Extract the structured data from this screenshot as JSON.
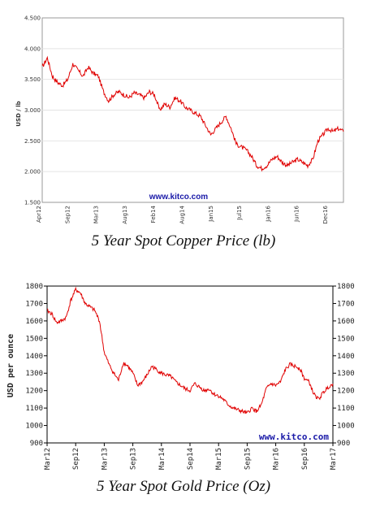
{
  "chart_data": [
    {
      "type": "line",
      "ylabel": "USD / lb",
      "ylim": [
        1.5,
        4.5
      ],
      "yticks": [
        "4.500",
        "4.000",
        "3.500",
        "3.000",
        "2.500",
        "2.000",
        "1.500"
      ],
      "xticks": [
        "Apr12",
        "Sep12",
        "Mar13",
        "Aug13",
        "Feb14",
        "Aug14",
        "Jan15",
        "Jul15",
        "Jan16",
        "Jun16",
        "Dec16"
      ],
      "watermark": "www.kitco.com",
      "caption": "5 Year Spot Copper Price (lb)",
      "line_color": "#e00000",
      "series": [
        {
          "x": [
            0,
            1,
            2,
            3,
            4,
            5,
            6,
            7,
            8,
            9,
            10,
            11,
            12,
            13,
            14,
            15,
            16,
            17,
            18,
            19,
            20,
            21,
            22,
            23,
            24,
            25,
            26,
            27,
            28,
            29,
            30,
            31,
            32,
            33,
            34,
            35,
            36,
            37,
            38,
            39,
            40,
            41,
            42,
            43,
            44,
            45,
            46,
            47,
            48,
            49,
            50,
            51,
            52,
            53,
            54,
            55,
            56,
            57,
            58,
            59
          ],
          "values": [
            3.7,
            3.85,
            3.55,
            3.45,
            3.4,
            3.5,
            3.75,
            3.65,
            3.55,
            3.7,
            3.6,
            3.55,
            3.3,
            3.15,
            3.25,
            3.3,
            3.25,
            3.2,
            3.28,
            3.25,
            3.2,
            3.3,
            3.25,
            3.0,
            3.1,
            3.05,
            3.2,
            3.15,
            3.05,
            3.0,
            2.95,
            2.9,
            2.75,
            2.6,
            2.7,
            2.8,
            2.9,
            2.7,
            2.45,
            2.4,
            2.35,
            2.25,
            2.1,
            2.05,
            2.1,
            2.2,
            2.25,
            2.15,
            2.1,
            2.15,
            2.2,
            2.15,
            2.1,
            2.2,
            2.5,
            2.6,
            2.7,
            2.65,
            2.7,
            2.65
          ]
        }
      ]
    },
    {
      "type": "line",
      "ylabel": "USD per ounce",
      "ylim": [
        900,
        1800
      ],
      "yticks": [
        "1800",
        "1700",
        "1600",
        "1500",
        "1400",
        "1300",
        "1200",
        "1100",
        "1000",
        "900"
      ],
      "xticks": [
        "Mar12",
        "Sep12",
        "Mar13",
        "Sep13",
        "Mar14",
        "Sep14",
        "Mar15",
        "Sep15",
        "Mar16",
        "Sep16",
        "Mar17"
      ],
      "watermark": "www.kitco.com",
      "caption": "5 Year Spot Gold Price (Oz)",
      "line_color": "#e00000",
      "series": [
        {
          "x": [
            0,
            1,
            2,
            3,
            4,
            5,
            6,
            7,
            8,
            9,
            10,
            11,
            12,
            13,
            14,
            15,
            16,
            17,
            18,
            19,
            20,
            21,
            22,
            23,
            24,
            25,
            26,
            27,
            28,
            29,
            30,
            31,
            32,
            33,
            34,
            35,
            36,
            37,
            38,
            39,
            40,
            41,
            42,
            43,
            44,
            45,
            46,
            47,
            48,
            49,
            50,
            51,
            52,
            53,
            54,
            55,
            56,
            57,
            58,
            59,
            60
          ],
          "values": [
            1660,
            1640,
            1590,
            1600,
            1620,
            1720,
            1780,
            1760,
            1700,
            1680,
            1660,
            1600,
            1420,
            1350,
            1300,
            1260,
            1360,
            1340,
            1300,
            1230,
            1250,
            1290,
            1340,
            1320,
            1300,
            1290,
            1280,
            1250,
            1230,
            1210,
            1200,
            1240,
            1220,
            1200,
            1210,
            1180,
            1170,
            1150,
            1120,
            1100,
            1090,
            1080,
            1070,
            1100,
            1080,
            1120,
            1210,
            1240,
            1230,
            1250,
            1320,
            1350,
            1340,
            1330,
            1270,
            1250,
            1180,
            1150,
            1190,
            1220,
            1240
          ]
        }
      ]
    }
  ]
}
